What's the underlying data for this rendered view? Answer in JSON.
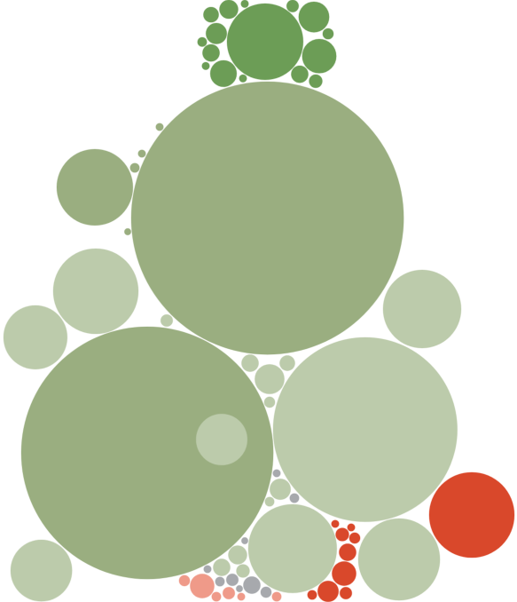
{
  "chart_data": {
    "type": "packed-bubble",
    "series": [
      {
        "color": "#9aae80",
        "values": [
          256,
          219,
          20,
          0.3,
          0.2,
          0.2,
          0.15
        ]
      },
      {
        "color": "#6c9d56",
        "values": [
          20,
          4,
          3.2,
          2.4,
          1.5,
          1.2,
          1.0,
          1.0,
          0.8,
          0.6,
          0.5,
          0.4,
          0.3,
          0.2,
          0.2,
          0.2
        ]
      },
      {
        "color": "#bccbab",
        "values": [
          117,
          27,
          25,
          23,
          21,
          14,
          13,
          9,
          3,
          1.5,
          1.2,
          1.0,
          1.0,
          0.8,
          0.6,
          0.5,
          0.4,
          0.3
        ]
      },
      {
        "color": "#a7a9ad",
        "values": [
          1.0,
          0.5,
          0.4,
          0.3,
          0.3,
          0.2,
          0.2,
          0.15,
          0.15
        ]
      },
      {
        "color": "#ef9a89",
        "values": [
          2.0,
          0.5,
          0.4,
          0.3,
          0.3,
          0.2
        ]
      },
      {
        "color": "#d9482b",
        "values": [
          25,
          2.0,
          1.5,
          1.0,
          0.6,
          0.5,
          0.4,
          0.3,
          0.2,
          0.2
        ]
      }
    ]
  }
}
